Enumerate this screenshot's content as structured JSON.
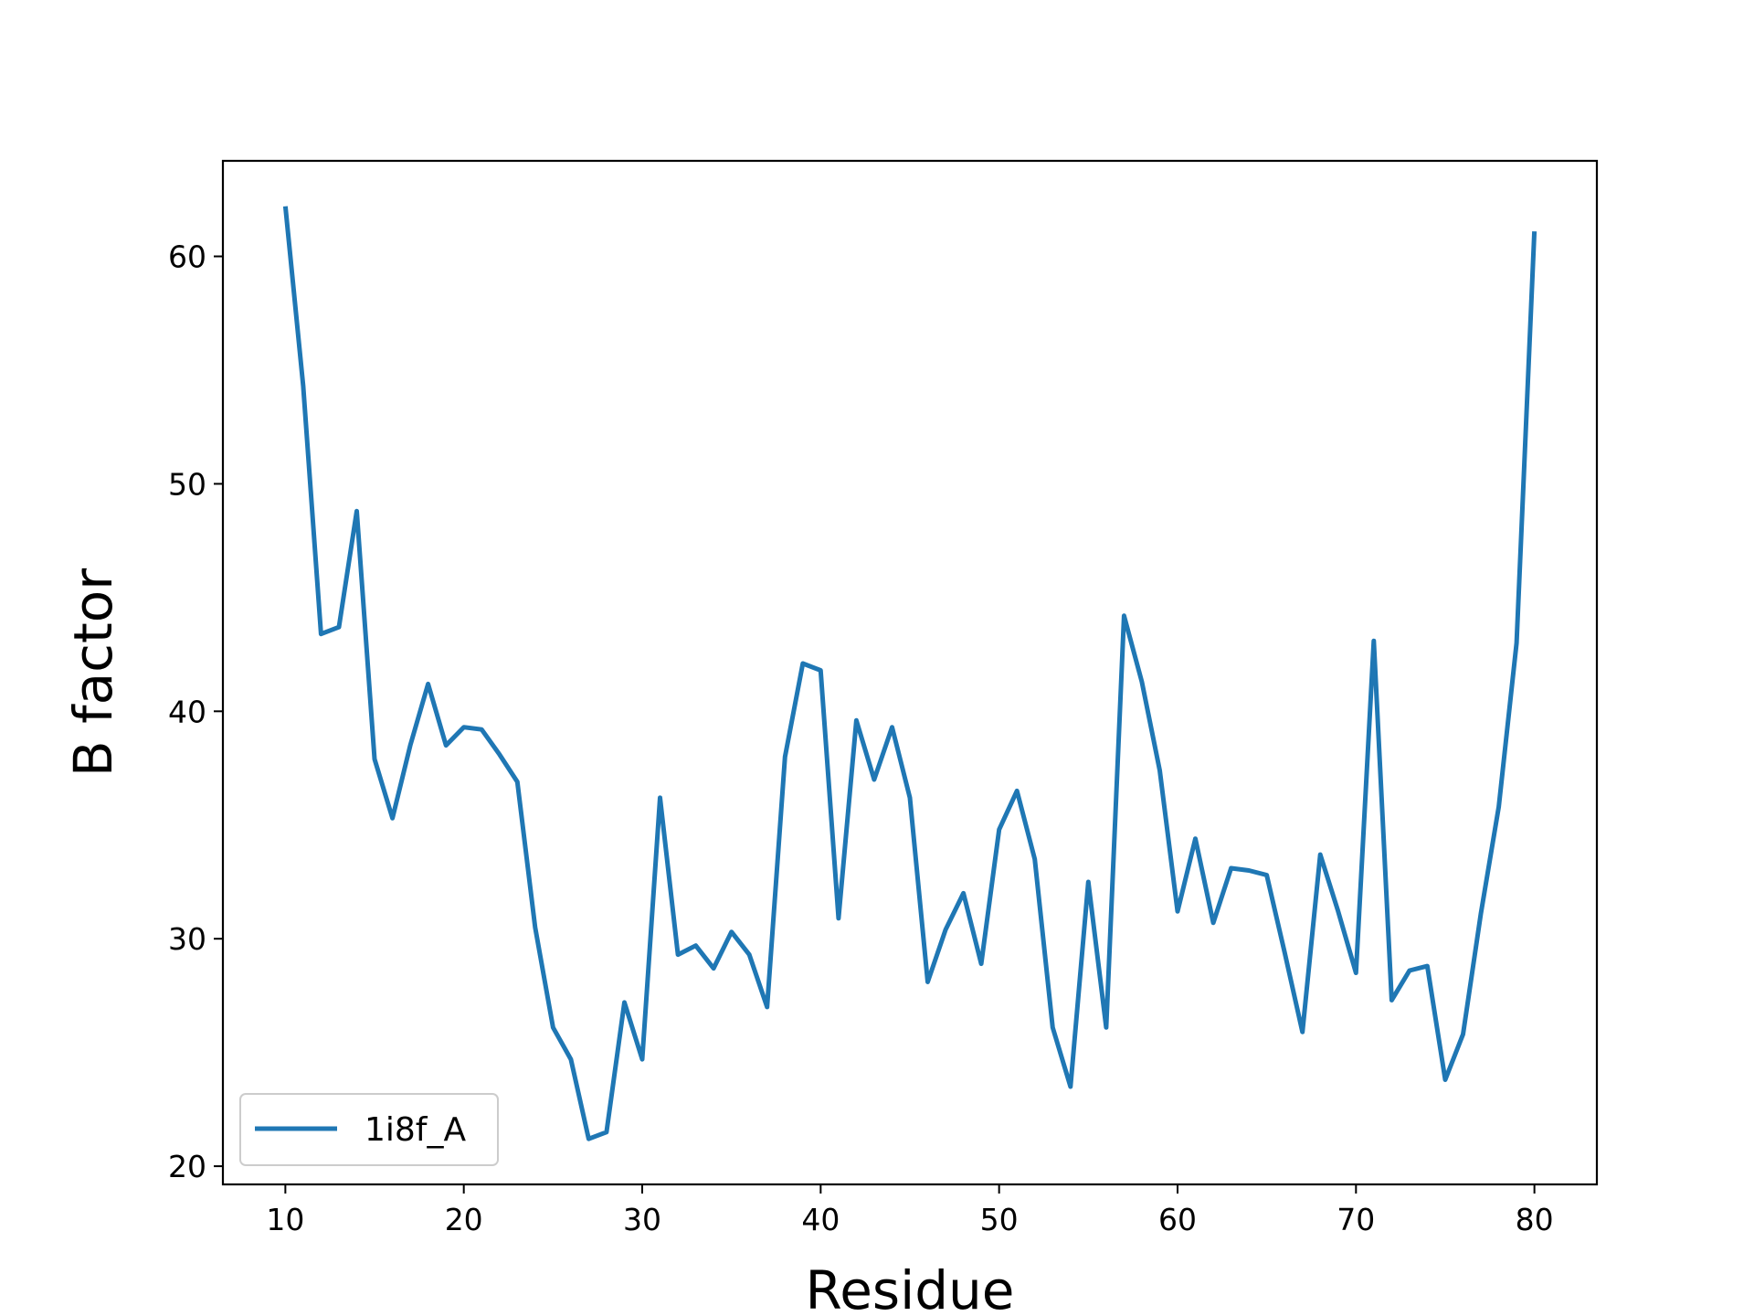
{
  "chart_data": {
    "type": "line",
    "xlabel": "Residue",
    "ylabel": "B factor",
    "xlim": [
      6.5,
      83.5
    ],
    "ylim": [
      19.2,
      64.2
    ],
    "xticks": [
      10,
      20,
      30,
      40,
      50,
      60,
      70,
      80
    ],
    "yticks": [
      20,
      30,
      40,
      50,
      60
    ],
    "grid": false,
    "legend": "lower-left",
    "series": [
      {
        "name": "1i8f_A",
        "color": "#1f77b4",
        "x": [
          10,
          11,
          12,
          13,
          14,
          15,
          16,
          17,
          18,
          19,
          20,
          21,
          22,
          23,
          24,
          25,
          26,
          27,
          28,
          29,
          30,
          31,
          32,
          33,
          34,
          35,
          36,
          37,
          38,
          39,
          40,
          41,
          42,
          43,
          44,
          45,
          46,
          47,
          48,
          49,
          50,
          51,
          52,
          53,
          54,
          55,
          56,
          57,
          58,
          59,
          60,
          61,
          62,
          63,
          64,
          65,
          66,
          67,
          68,
          69,
          70,
          71,
          72,
          73,
          74,
          75,
          76,
          77,
          78,
          79,
          80
        ],
        "y": [
          62.2,
          54.3,
          43.4,
          43.7,
          48.8,
          37.9,
          35.3,
          38.5,
          41.2,
          38.5,
          39.3,
          39.2,
          38.1,
          36.9,
          30.5,
          26.1,
          24.7,
          21.2,
          21.5,
          27.2,
          24.7,
          36.2,
          29.3,
          29.7,
          28.7,
          30.3,
          29.3,
          27.0,
          38.0,
          42.1,
          41.8,
          30.9,
          39.6,
          37.0,
          39.3,
          36.2,
          28.1,
          30.4,
          32.0,
          28.9,
          34.8,
          36.5,
          33.5,
          26.1,
          23.5,
          32.5,
          26.1,
          44.2,
          41.3,
          37.4,
          31.2,
          34.4,
          30.7,
          33.1,
          33.0,
          32.8,
          29.4,
          25.9,
          33.7,
          31.2,
          28.5,
          43.1,
          27.3,
          28.6,
          28.8,
          23.8,
          25.8,
          31.1,
          35.8,
          43.0,
          61.1
        ]
      }
    ]
  }
}
